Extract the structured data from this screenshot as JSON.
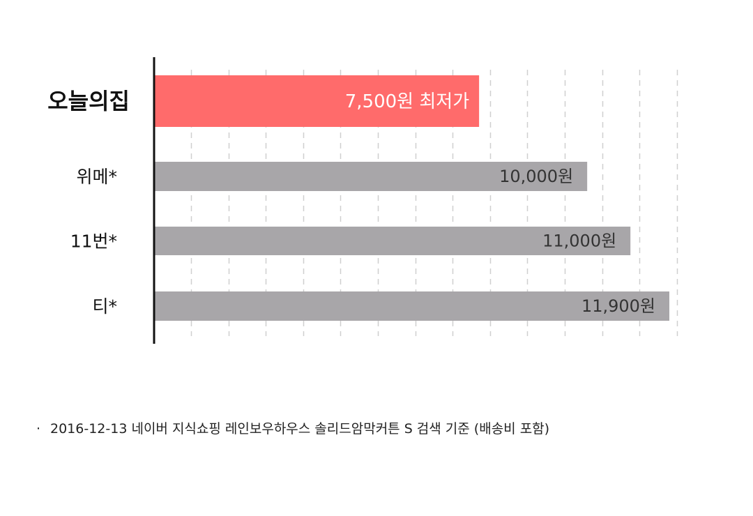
{
  "chart_data": {
    "type": "bar",
    "orientation": "horizontal",
    "categories": [
      "오늘의집",
      "위메*",
      "11번*",
      "티*"
    ],
    "values": [
      7500,
      10000,
      11000,
      11900
    ],
    "value_labels": [
      "7,500원 최저가",
      "10,000원",
      "11,000원",
      "11,900원"
    ],
    "highlight_index": 0,
    "xlim": [
      0,
      11900
    ],
    "grid": "vertical dashed",
    "colors": {
      "highlight": "#ff6b6b",
      "default": "#a8a6a9",
      "axis": "#111111",
      "grid": "#cfcfcf",
      "highlight_label": "#ffffff",
      "default_label": "#333333"
    }
  },
  "footnote": {
    "bullet": "·",
    "text": "2016-12-13 네이버 지식쇼핑 레인보우하우스 솔리드암막커튼 S 검색 기준 (배송비 포함)"
  }
}
